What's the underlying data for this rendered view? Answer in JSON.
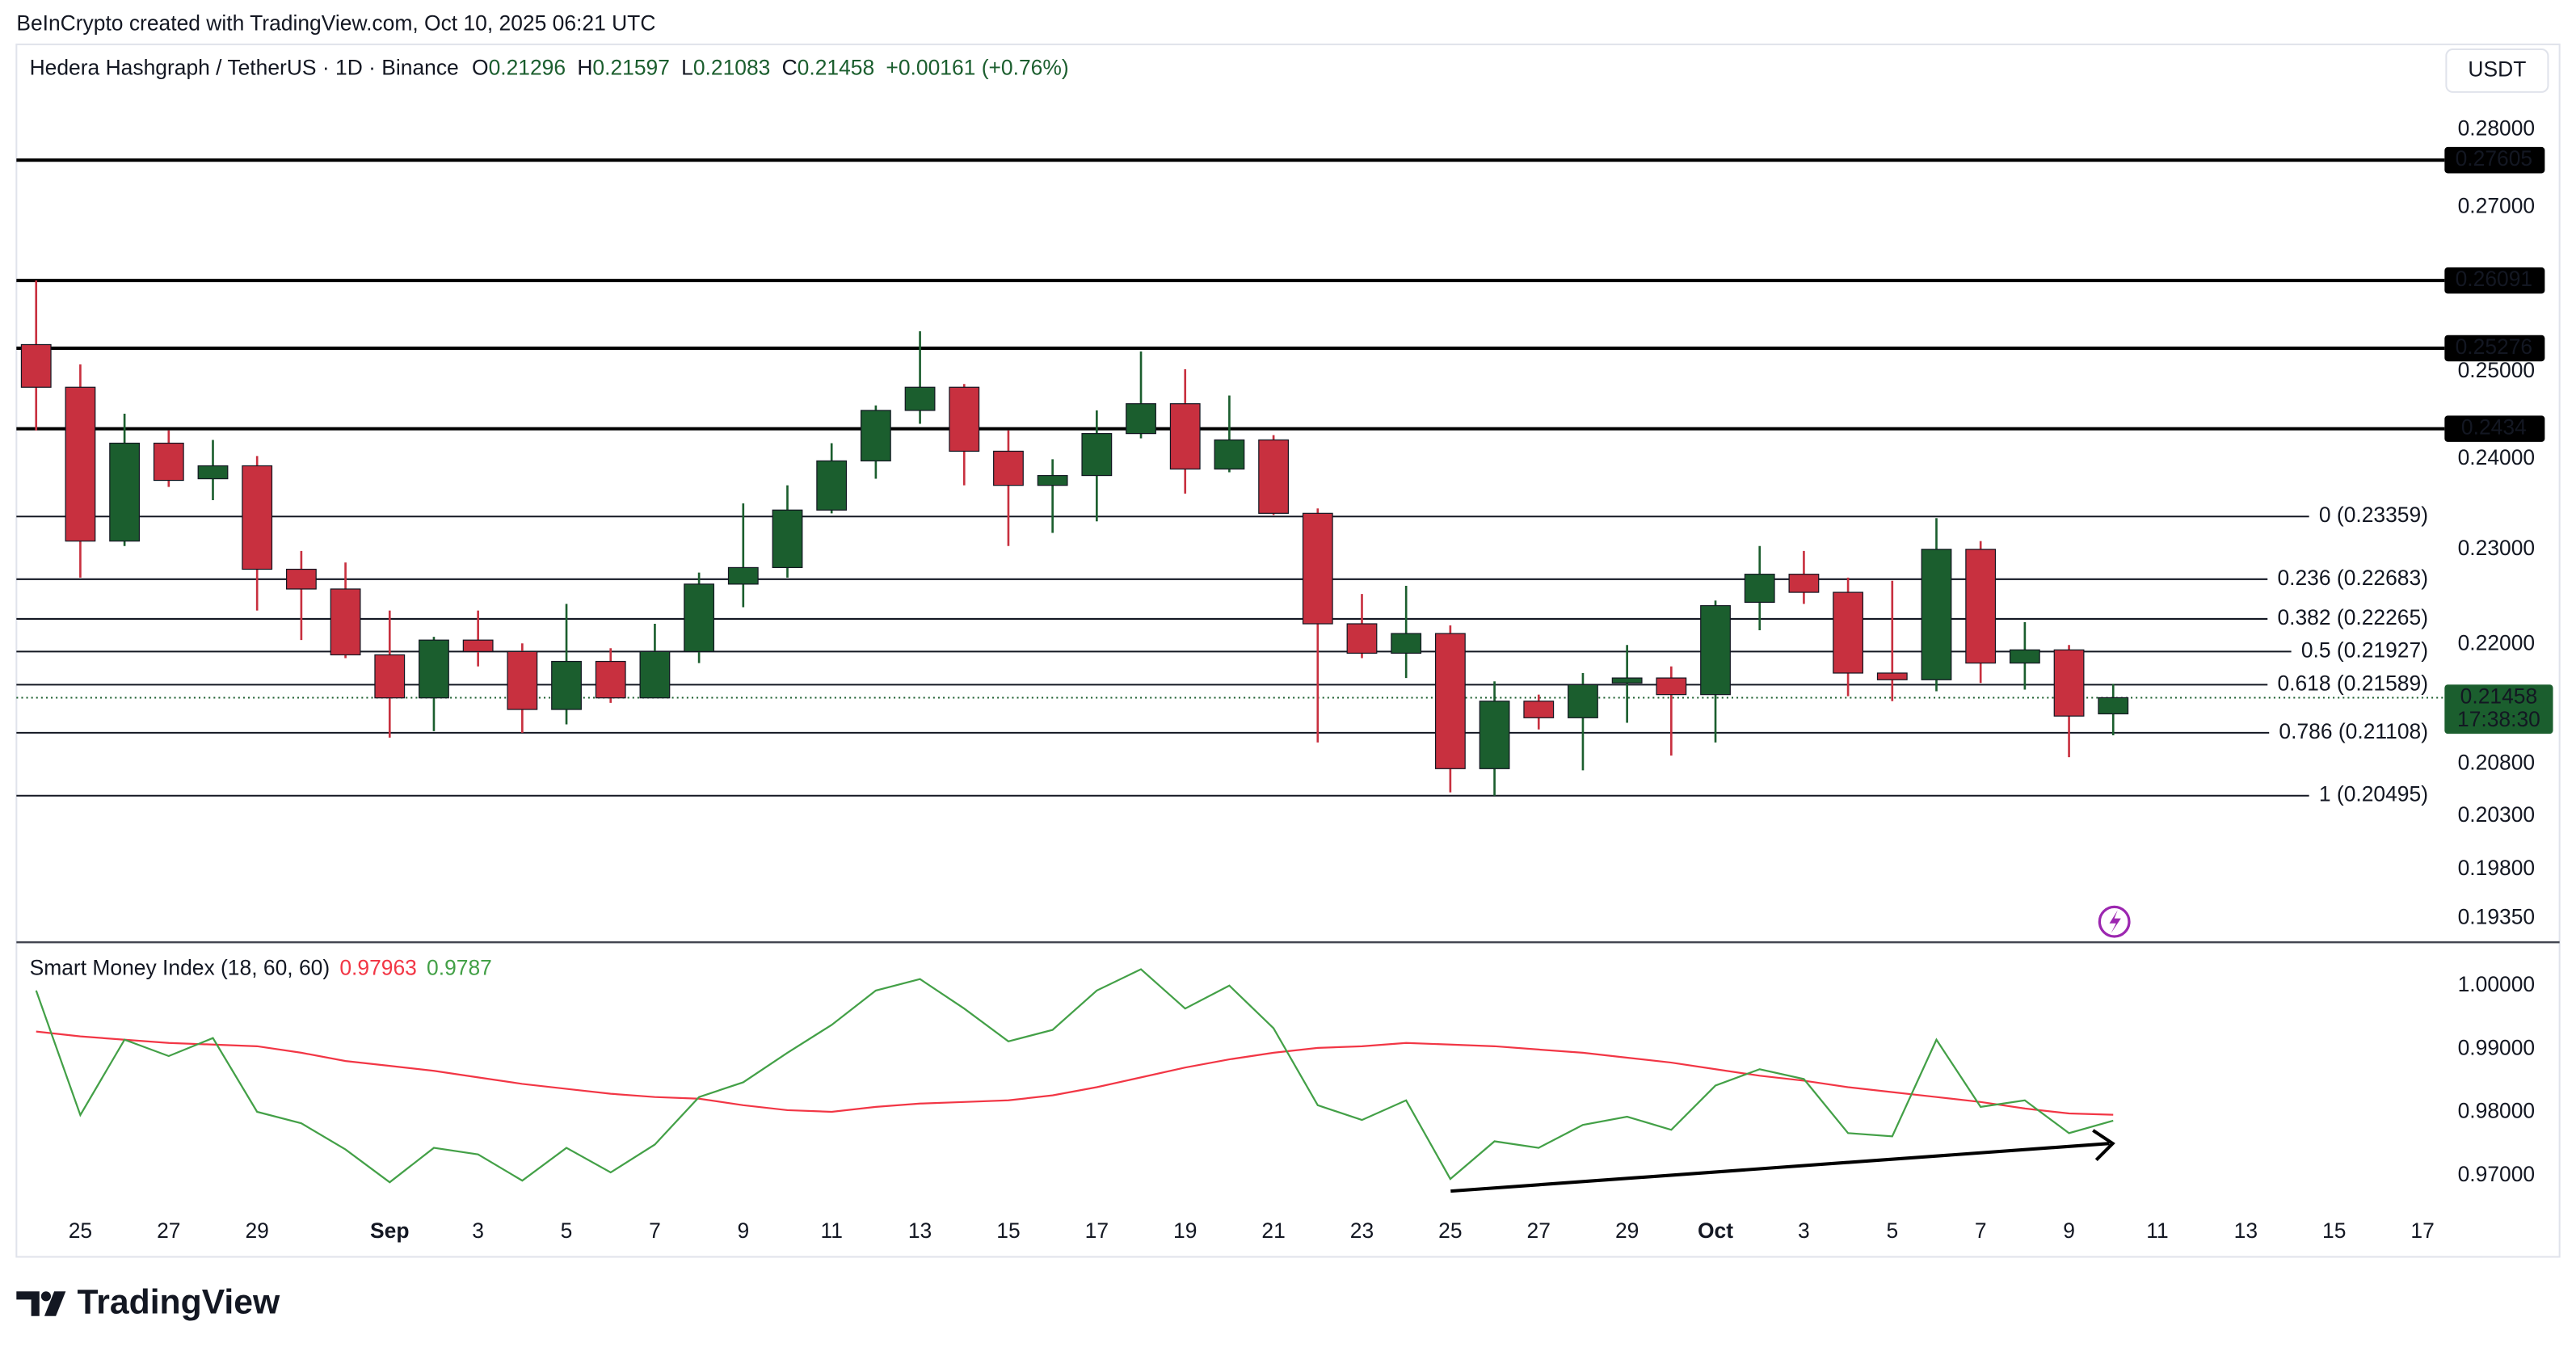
{
  "header": "BeInCrypto created with TradingView.com, Oct 10, 2025 06:21 UTC",
  "brand": "TradingView",
  "currency": "USDT",
  "chart_data": [
    {
      "type": "candlestick",
      "title": "Hedera Hashgraph / TetherUS · 1D · Binance",
      "legend_fields": [
        "O",
        "H",
        "L",
        "C"
      ],
      "change": "+0.00161 (+0.76%)",
      "countdown": "17:38:30",
      "log": true,
      "grid": false,
      "up_color": "#1b5e2e",
      "down_color": "#c8303f",
      "categories": [
        null,
        "25",
        null,
        "27",
        null,
        "29",
        null,
        null,
        "Sep",
        null,
        "3",
        null,
        "5",
        null,
        "7",
        null,
        "9",
        null,
        "11",
        null,
        "13",
        null,
        "15",
        null,
        "17",
        null,
        "19",
        null,
        "21",
        null,
        "23",
        null,
        "25",
        null,
        "27",
        null,
        "29",
        null,
        "Oct",
        null,
        "3",
        null,
        "5",
        null,
        "7",
        null,
        "9",
        null
      ],
      "future_ticks": [
        "11",
        "13",
        "15",
        "17"
      ],
      "open": [
        0.25319,
        0.24818,
        0.23092,
        0.24176,
        0.23776,
        0.23921,
        0.22789,
        0.22579,
        0.21893,
        0.21456,
        0.22045,
        0.21927,
        0.2134,
        0.21826,
        0.21456,
        0.21927,
        0.22631,
        0.22807,
        0.2343,
        0.23976,
        0.2455,
        0.24818,
        0.24085,
        0.23703,
        0.23812,
        0.24285,
        0.24627,
        0.23885,
        0.24213,
        0.23394,
        0.22214,
        0.2191,
        0.22113,
        0.20756,
        0.21423,
        0.21257,
        0.21606,
        0.21657,
        0.21489,
        0.22439,
        0.22736,
        0.22544,
        0.21707,
        0.21639,
        0.23003,
        0.21809,
        0.21944,
        0.21296
      ],
      "high": [
        0.26091,
        0.25085,
        0.24512,
        0.24322,
        0.24213,
        0.24031,
        0.22985,
        0.22861,
        0.22352,
        0.22079,
        0.22352,
        0.22011,
        0.22422,
        0.21961,
        0.22214,
        0.22754,
        0.23503,
        0.23703,
        0.24176,
        0.24607,
        0.25477,
        0.24856,
        0.24322,
        0.23994,
        0.2455,
        0.25238,
        0.25028,
        0.24722,
        0.24267,
        0.23448,
        0.22526,
        0.22613,
        0.22197,
        0.21623,
        0.21489,
        0.21707,
        0.21994,
        0.21775,
        0.22457,
        0.23039,
        0.22985,
        0.227,
        0.22666,
        0.23341,
        0.23092,
        0.22231,
        0.21994,
        0.21597
      ],
      "low": [
        0.24322,
        0.227,
        0.23039,
        0.23685,
        0.23539,
        0.22352,
        0.22045,
        0.21859,
        0.2106,
        0.21124,
        0.21775,
        0.21108,
        0.21191,
        0.21406,
        0.21456,
        0.21809,
        0.22387,
        0.227,
        0.23394,
        0.23776,
        0.24397,
        0.23703,
        0.23039,
        0.23181,
        0.23306,
        0.24231,
        0.23612,
        0.23849,
        0.23376,
        0.21012,
        0.21859,
        0.21657,
        0.20527,
        0.20495,
        0.21141,
        0.2074,
        0.21207,
        0.20884,
        0.21012,
        0.22147,
        0.22422,
        0.21473,
        0.21423,
        0.21523,
        0.21606,
        0.21539,
        0.20868,
        0.21083
      ],
      "close": [
        0.24818,
        0.23092,
        0.24176,
        0.23758,
        0.23921,
        0.22789,
        0.22579,
        0.21893,
        0.21456,
        0.22045,
        0.21927,
        0.2134,
        0.21826,
        0.21456,
        0.21927,
        0.22631,
        0.22807,
        0.2343,
        0.23976,
        0.2455,
        0.24818,
        0.24085,
        0.23703,
        0.23812,
        0.24285,
        0.24627,
        0.23885,
        0.24213,
        0.23394,
        0.22214,
        0.2191,
        0.22113,
        0.20756,
        0.21423,
        0.21257,
        0.21589,
        0.21657,
        0.21489,
        0.22404,
        0.22736,
        0.22544,
        0.21707,
        0.21639,
        0.23003,
        0.21809,
        0.21944,
        0.21274,
        0.21458
      ],
      "ylim": [
        0.19142,
        0.29144
      ],
      "yticks": [
        {
          "value": 0.28,
          "label": "0.28000"
        },
        {
          "value": 0.27,
          "label": "0.27000"
        },
        {
          "value": 0.25,
          "label": "0.25000"
        },
        {
          "value": 0.24,
          "label": "0.24000"
        },
        {
          "value": 0.23,
          "label": "0.23000"
        },
        {
          "value": 0.22,
          "label": "0.22000"
        },
        {
          "value": 0.208,
          "label": "0.20800"
        },
        {
          "value": 0.203,
          "label": "0.20300"
        },
        {
          "value": 0.198,
          "label": "0.19800"
        },
        {
          "value": 0.1935,
          "label": "0.19350"
        }
      ],
      "levels": [
        0.27605,
        0.26091,
        0.25276,
        0.2434
      ],
      "fib": [
        {
          "value": 0.23359,
          "label": "0 (0.23359)"
        },
        {
          "value": 0.22683,
          "label": "0.236 (0.22683)"
        },
        {
          "value": 0.22265,
          "label": "0.382 (0.22265)"
        },
        {
          "value": 0.21927,
          "label": "0.5 (0.21927)"
        },
        {
          "value": 0.21589,
          "label": "0.618 (0.21589)"
        },
        {
          "value": 0.21108,
          "label": "0.786 (0.21108)"
        },
        {
          "value": 0.20495,
          "label": "1 (0.20495)"
        }
      ]
    },
    {
      "type": "line",
      "title": "Smart Money Index (18, 60, 60)",
      "ylim": [
        0.965,
        1.005
      ],
      "yticks": [
        {
          "value": 1.0,
          "label": "1.00000"
        },
        {
          "value": 0.99,
          "label": "0.99000"
        },
        {
          "value": 0.98,
          "label": "0.98000"
        },
        {
          "value": 0.97,
          "label": "0.97000"
        }
      ],
      "series": [
        {
          "color": "#f23645",
          "values": [
            0.99276,
            0.99199,
            0.99147,
            0.99096,
            0.9907,
            0.99044,
            0.98941,
            0.98811,
            0.98734,
            0.98656,
            0.98553,
            0.9845,
            0.98372,
            0.98295,
            0.98243,
            0.98217,
            0.98114,
            0.98036,
            0.9801,
            0.98088,
            0.9814,
            0.98165,
            0.98191,
            0.98269,
            0.98398,
            0.98553,
            0.98708,
            0.98837,
            0.98941,
            0.99018,
            0.99044,
            0.99096,
            0.9907,
            0.99044,
            0.98992,
            0.98941,
            0.98863,
            0.98786,
            0.98682,
            0.98579,
            0.98501,
            0.98398,
            0.9832,
            0.98243,
            0.98165,
            0.98062,
            0.97984,
            0.97963
          ]
        },
        {
          "color": "#43a047",
          "values": [
            0.99922,
            0.97959,
            0.99147,
            0.98889,
            0.99173,
            0.9801,
            0.97829,
            0.97416,
            0.96899,
            0.97442,
            0.97339,
            0.96925,
            0.97442,
            0.97054,
            0.97494,
            0.98243,
            0.98475,
            0.98941,
            0.9938,
            0.99922,
            1.00103,
            0.99638,
            0.99121,
            0.99302,
            0.99922,
            1.00258,
            0.99638,
            1.0,
            0.99328,
            0.98114,
            0.97881,
            0.98191,
            0.96951,
            0.97545,
            0.97442,
            0.97804,
            0.97933,
            0.97726,
            0.98424,
            0.98682,
            0.98527,
            0.97674,
            0.97623,
            0.99147,
            0.98088,
            0.98191,
            0.97674,
            0.9787
          ]
        }
      ]
    }
  ]
}
